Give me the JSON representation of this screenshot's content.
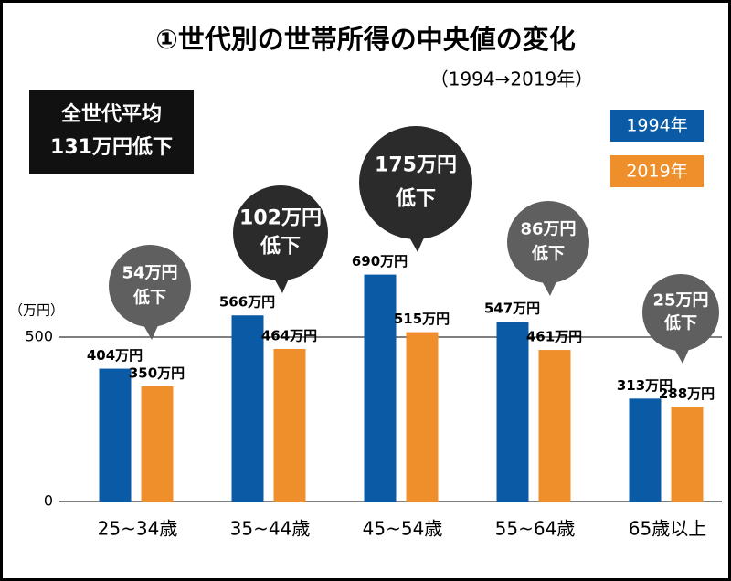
{
  "chart_data": {
    "type": "bar",
    "title": "①世代別の世帯所得の中央値の変化",
    "subtitle": "（1994→2019年）",
    "callout": [
      "全世代平均",
      "131万円低下"
    ],
    "y_axis_label": "（万円）",
    "categories": [
      "25~34歳",
      "35~44歳",
      "45~54歳",
      "55~64歳",
      "65歳以上"
    ],
    "series": [
      {
        "name": "1994年",
        "color": "#0b5aa6",
        "values": [
          404,
          566,
          690,
          547,
          313
        ],
        "value_labels": [
          "404万円",
          "566万円",
          "690万円",
          "547万円",
          "313万円"
        ]
      },
      {
        "name": "2019年",
        "color": "#ef8f2b",
        "values": [
          350,
          464,
          515,
          461,
          288
        ],
        "value_labels": [
          "350万円",
          "464万円",
          "515万円",
          "461万円",
          "288万円"
        ]
      }
    ],
    "annotations": [
      {
        "lines": [
          "54万円",
          "低下"
        ],
        "color": "#5f5f5f"
      },
      {
        "lines": [
          "102万円",
          "低下"
        ],
        "color": "#2b2b2b"
      },
      {
        "lines": [
          "175万円",
          "低下"
        ],
        "color": "#2b2b2b"
      },
      {
        "lines": [
          "86万円",
          "低下"
        ],
        "color": "#5f5f5f"
      },
      {
        "lines": [
          "25万円",
          "低下"
        ],
        "color": "#5f5f5f"
      }
    ],
    "ylim": [
      0,
      700
    ],
    "yticks": [
      0,
      500
    ],
    "grid": true
  }
}
